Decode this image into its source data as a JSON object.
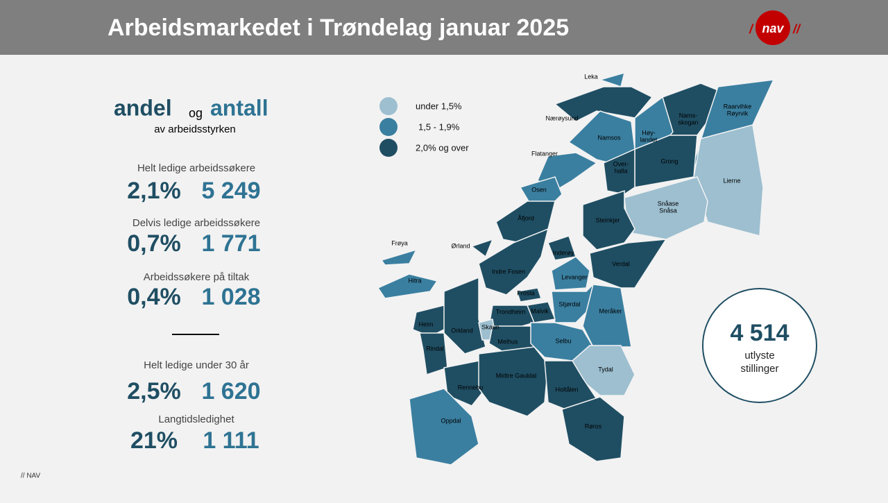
{
  "header": {
    "title": "Arbeidsmarkedet i Trøndelag januar 2025",
    "logo": "nav"
  },
  "summary": {
    "title_andel": "andel",
    "title_og": "og",
    "title_antall": "antall",
    "subtitle": "av arbeidsstyrken",
    "stats": [
      {
        "label": "Helt ledige arbeidssøkere",
        "percent": "2,1%",
        "count": "5 249"
      },
      {
        "label": "Delvis ledige arbeidssøkere",
        "percent": "0,7%",
        "count": "1 771"
      },
      {
        "label": "Arbeidssøkere på tiltak",
        "percent": "0,4%",
        "count": "1 028"
      },
      {
        "label": "Helt ledige under 30 år",
        "percent": "2,5%",
        "count": "1 620"
      },
      {
        "label": "Langtidsledighet",
        "percent": "21%",
        "count": "1 111"
      }
    ]
  },
  "legend": [
    {
      "label": "under 1,5%",
      "color": "#9dbfd0"
    },
    {
      "label": "1,5 - 1,9%",
      "color": "#3a7fa0"
    },
    {
      "label": "2,0% og over",
      "color": "#1f4e63"
    }
  ],
  "map": {
    "labels": [
      [
        "Leka"
      ],
      [
        "Nærøysund"
      ],
      [
        "Flatanger"
      ],
      [
        "Namsos"
      ],
      [
        "Nams-",
        "skogan"
      ],
      [
        "Raarvihke",
        "Røyrvik"
      ],
      [
        "Høy-",
        "landet"
      ],
      [
        "Grong"
      ],
      [
        "Over-",
        "halla"
      ],
      [
        "Lierne"
      ],
      [
        "Osen"
      ],
      [
        "Snåase",
        "Snåsa"
      ],
      [
        "Åfjord"
      ],
      [
        "Steinkjer"
      ],
      [
        "Frøya"
      ],
      [
        "Ørland"
      ],
      [
        "Inderøy"
      ],
      [
        "Verdal"
      ],
      [
        "Indre Fosen"
      ],
      [
        "Hitra"
      ],
      [
        "Levanger"
      ],
      [
        "Frosta"
      ],
      [
        "Stjørdal"
      ],
      [
        "Trondheim"
      ],
      [
        "Malvik"
      ],
      [
        "Meråker"
      ],
      [
        "Heim"
      ],
      [
        "Orkland"
      ],
      [
        "Skaun"
      ],
      [
        "Melhus"
      ],
      [
        "Rindal"
      ],
      [
        "Selbu"
      ],
      [
        "Tydal"
      ],
      [
        "Rennebu"
      ],
      [
        "Midtre Gauldal"
      ],
      [
        "Holtålen"
      ],
      [
        "Oppdal"
      ],
      [
        "Røros"
      ]
    ]
  },
  "vacancies": {
    "count": "4 514",
    "line1": "utlyste",
    "line2": "stillinger"
  },
  "footer": "// NAV"
}
